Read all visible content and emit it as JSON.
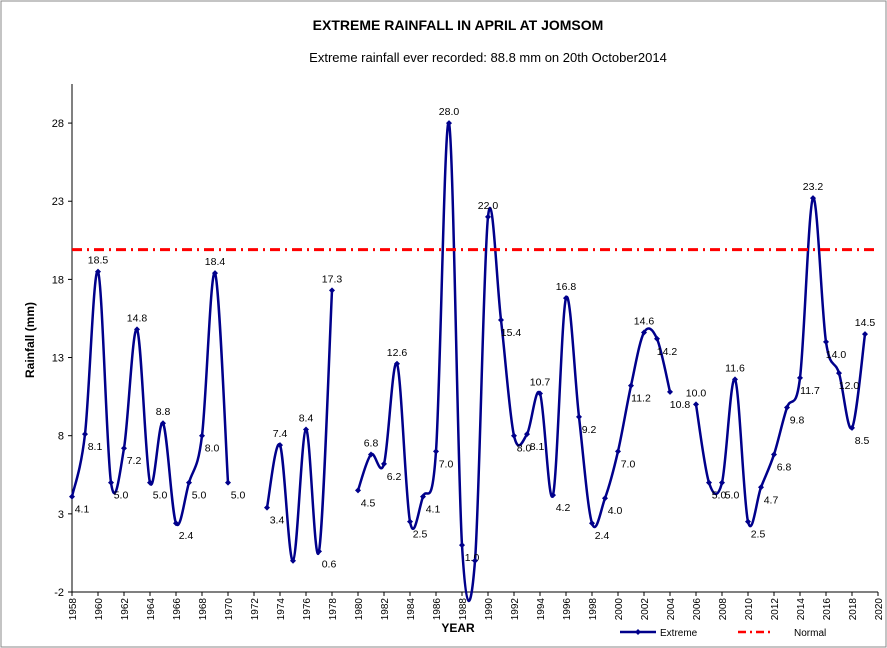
{
  "chart_data": {
    "type": "line",
    "title": "EXTREME  RAINFALL  IN APRIL AT JOMSOM",
    "subtitle": "Extreme rainfall ever recorded: 88.8 mm on 20th October2014",
    "x_label": "YEAR",
    "y_label": "Rainfall (mm)",
    "x": [
      1958,
      1959,
      1960,
      1961,
      1962,
      1963,
      1964,
      1965,
      1966,
      1967,
      1968,
      1969,
      1970,
      1971,
      1972,
      1973,
      1974,
      1975,
      1976,
      1977,
      1978,
      1979,
      1980,
      1981,
      1982,
      1983,
      1984,
      1985,
      1986,
      1987,
      1988,
      1989,
      1990,
      1991,
      1992,
      1993,
      1994,
      1995,
      1996,
      1997,
      1998,
      1999,
      2000,
      2001,
      2002,
      2003,
      2004,
      2005,
      2006,
      2007,
      2008,
      2009,
      2010,
      2011,
      2012,
      2013,
      2014,
      2015,
      2016,
      2017,
      2018,
      2019
    ],
    "series": [
      {
        "name": "Extreme",
        "color": "#00008b",
        "values": [
          4.1,
          8.1,
          18.5,
          5.0,
          7.2,
          14.8,
          5.0,
          8.8,
          2.4,
          5.0,
          8.0,
          18.4,
          5.0,
          null,
          null,
          3.4,
          7.4,
          0,
          8.4,
          0.6,
          17.3,
          null,
          4.5,
          6.8,
          6.2,
          12.6,
          2.5,
          4.1,
          7.0,
          28.0,
          1.0,
          0,
          22.0,
          15.4,
          8.0,
          8.1,
          10.7,
          4.2,
          16.8,
          9.2,
          2.4,
          4.0,
          7.0,
          11.2,
          14.6,
          14.2,
          10.8,
          null,
          10.0,
          5.0,
          5.0,
          11.6,
          2.5,
          4.7,
          6.8,
          9.8,
          11.7,
          23.2,
          14.0,
          12.0,
          8.5,
          14.5
        ],
        "value_labels": [
          "4.1",
          "8.1",
          "18.5",
          "5.0",
          "7.2",
          "14.8",
          "5.0",
          "8.8",
          "2.4",
          "5.0",
          "8.0",
          "18.4",
          "5.0",
          null,
          null,
          "3.4",
          "7.4",
          null,
          "8.4",
          "0.6",
          "17.3",
          null,
          "4.5",
          "6.8",
          "6.2",
          "12.6",
          "2.5",
          "4.1",
          "7.0",
          "28.0",
          "1.0",
          null,
          "22.0",
          "15.4",
          "8.0",
          "8.1",
          "10.7",
          "4.2",
          "16.8",
          "9.2",
          "2.4",
          "4.0",
          "7.0",
          "11.2",
          "14.6",
          "14.2",
          "10.8",
          null,
          "10.0",
          "5.0",
          "5.0",
          "11.6",
          "2.5",
          "4.7",
          "6.8",
          "9.8",
          "11.7",
          "23.2",
          "14.0",
          "12.0",
          "8.5",
          "14.5"
        ]
      },
      {
        "name": "Normal",
        "color": "#ff0000",
        "x": [
          1958,
          2020
        ],
        "values": [
          19.9,
          19.9
        ]
      }
    ],
    "xlim": [
      1958,
      2020
    ],
    "xticks": [
      1958,
      1960,
      1962,
      1964,
      1966,
      1968,
      1970,
      1972,
      1974,
      1976,
      1978,
      1980,
      1982,
      1984,
      1986,
      1988,
      1990,
      1992,
      1994,
      1996,
      1998,
      2000,
      2002,
      2004,
      2006,
      2008,
      2010,
      2012,
      2014,
      2016,
      2018,
      2020
    ],
    "ylim": [
      -2,
      30.5
    ],
    "yticks": [
      -2,
      3,
      8,
      13,
      18,
      23,
      28
    ],
    "legend": "bottom-right"
  }
}
